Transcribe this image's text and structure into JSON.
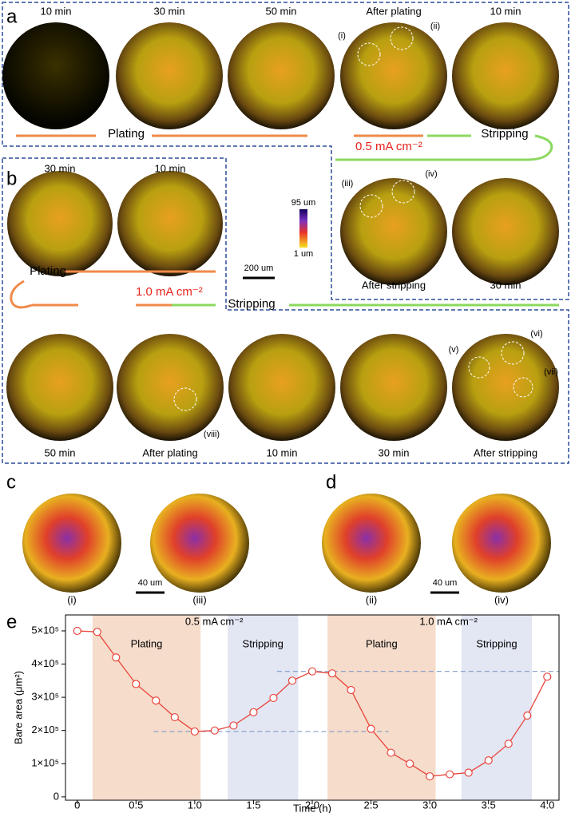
{
  "panels": {
    "a": {
      "label": "a",
      "top_times": [
        "10 min",
        "30 min",
        "50 min",
        "After plating",
        "10 min"
      ],
      "bottom_times": [
        "After stripping",
        "30 min"
      ],
      "process": [
        "Plating",
        "Stripping"
      ],
      "current": "0.5 mA cm⁻²",
      "callouts": [
        "(i)",
        "(ii)",
        "(iii)",
        "(iv)"
      ]
    },
    "b": {
      "label": "b",
      "top_times": [
        "30 min",
        "10 min"
      ],
      "bottom_times": [
        "50 min",
        "After plating",
        "10 min",
        "30 min",
        "After stripping"
      ],
      "process": [
        "Plating",
        "Stripping"
      ],
      "current": "1.0 mA cm⁻²",
      "callouts": [
        "(v)",
        "(vi)",
        "(vii)",
        "(viii)"
      ]
    },
    "scale": {
      "colorbar": [
        "95 um",
        "1 um"
      ],
      "bar": "200 um"
    },
    "c": {
      "label": "c",
      "images": [
        "(i)",
        "(iii)"
      ],
      "scale": "40 um"
    },
    "d": {
      "label": "d",
      "images": [
        "(ii)",
        "(iv)"
      ],
      "scale": "40 um"
    }
  },
  "chart_data": {
    "type": "line",
    "panel": "e",
    "xlabel": "Time (h)",
    "ylabel": "Bare area (μm²)",
    "x": [
      0,
      0.17,
      0.33,
      0.5,
      0.67,
      0.83,
      1,
      1.17,
      1.33,
      1.5,
      1.67,
      1.83,
      2,
      2.17,
      2.33,
      2.5,
      2.67,
      2.83,
      3,
      3.17,
      3.33,
      3.5,
      3.67,
      3.83,
      4
    ],
    "series": [
      {
        "name": "Bare area",
        "color": "#e8453c",
        "values": [
          500000,
          497000,
          420000,
          340000,
          290000,
          240000,
          197000,
          200000,
          215000,
          255000,
          298000,
          350000,
          378000,
          372000,
          322000,
          205000,
          133000,
          100000,
          62000,
          68000,
          73000,
          110000,
          160000,
          245000,
          362000
        ]
      }
    ],
    "xlim": [
      -0.1,
      4.1
    ],
    "ylim": [
      -10000,
      548000
    ],
    "xticks": [
      0,
      0.5,
      {
        "value": 1,
        "label": "1.0"
      },
      1.5,
      {
        "value": 2,
        "label": "2.0"
      },
      2.5,
      {
        "value": 3,
        "label": "3.0"
      },
      3.5,
      {
        "value": 4,
        "label": "4.0"
      }
    ],
    "yticks": [
      0,
      {
        "value": 100000,
        "label": "1×10⁵"
      },
      {
        "value": 200000,
        "label": "2×10⁵"
      },
      {
        "value": 300000,
        "label": "3×10⁵"
      },
      {
        "value": 400000,
        "label": "4×10⁵"
      },
      {
        "value": 500000,
        "label": "5×10⁵"
      }
    ],
    "regions": [
      {
        "label": "Plating",
        "x": [
          0.13,
          1.05
        ],
        "color": "#f6dccb"
      },
      {
        "label": "Stripping",
        "x": [
          1.28,
          1.88
        ],
        "color": "#e3e6f3"
      },
      {
        "label": "Plating",
        "x": [
          2.13,
          3.05
        ],
        "color": "#f6dccb"
      },
      {
        "label": "Stripping",
        "x": [
          3.27,
          3.87
        ],
        "color": "#e3e6f3"
      }
    ],
    "annotations": [
      "0.5 mA cm⁻²",
      "1.0 mA cm⁻²"
    ],
    "reference_lines": [
      {
        "y": 197000,
        "x": [
          0.65,
          2.65
        ]
      },
      {
        "y": 378000,
        "x": [
          1.7,
          4.1
        ]
      }
    ]
  }
}
